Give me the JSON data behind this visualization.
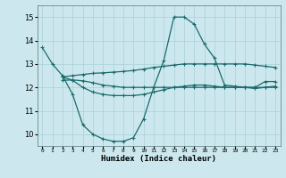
{
  "xlabel": "Humidex (Indice chaleur)",
  "ylabel": "",
  "bg_color": "#cce8ee",
  "grid_color": "#aacfd8",
  "line_color": "#1a6b6b",
  "xlim": [
    -0.5,
    23.5
  ],
  "ylim": [
    9.5,
    15.5
  ],
  "xticks": [
    0,
    1,
    2,
    3,
    4,
    5,
    6,
    7,
    8,
    9,
    10,
    11,
    12,
    13,
    14,
    15,
    16,
    17,
    18,
    19,
    20,
    21,
    22,
    23
  ],
  "yticks": [
    10,
    11,
    12,
    13,
    14,
    15
  ],
  "lines": [
    {
      "x": [
        0,
        1,
        2,
        3,
        4,
        5,
        6,
        7,
        8,
        9,
        10,
        11,
        12,
        13,
        14,
        15,
        16,
        17,
        18,
        19,
        20,
        21,
        22,
        23
      ],
      "y": [
        13.7,
        13.0,
        12.5,
        11.7,
        10.4,
        10.0,
        9.8,
        9.7,
        9.7,
        9.85,
        10.65,
        12.0,
        13.15,
        15.0,
        15.0,
        14.7,
        13.85,
        13.25,
        12.1,
        12.05,
        12.0,
        12.0,
        12.25,
        12.25
      ]
    },
    {
      "x": [
        2,
        3,
        4,
        5,
        6,
        7,
        8,
        9,
        10,
        11,
        12,
        13,
        14,
        15,
        16,
        17,
        18,
        19,
        20,
        21,
        22,
        23
      ],
      "y": [
        12.45,
        12.5,
        12.55,
        12.6,
        12.62,
        12.65,
        12.68,
        12.72,
        12.78,
        12.85,
        12.9,
        12.95,
        13.0,
        13.0,
        13.0,
        13.0,
        13.0,
        13.0,
        13.0,
        12.95,
        12.9,
        12.85
      ]
    },
    {
      "x": [
        2,
        3,
        4,
        5,
        6,
        7,
        8,
        9,
        10,
        11,
        12,
        13,
        14,
        15,
        16,
        17,
        18,
        19,
        20,
        21,
        22,
        23
      ],
      "y": [
        12.3,
        12.32,
        12.28,
        12.2,
        12.1,
        12.05,
        12.0,
        12.0,
        12.0,
        12.0,
        12.0,
        12.0,
        12.0,
        12.0,
        12.0,
        12.0,
        12.0,
        12.0,
        12.0,
        12.0,
        12.0,
        12.0
      ]
    },
    {
      "x": [
        2,
        3,
        4,
        5,
        6,
        7,
        8,
        9,
        10,
        11,
        12,
        13,
        14,
        15,
        16,
        17,
        18,
        19,
        20,
        21,
        22,
        23
      ],
      "y": [
        12.45,
        12.3,
        12.0,
        11.8,
        11.7,
        11.65,
        11.65,
        11.65,
        11.7,
        11.8,
        11.9,
        12.0,
        12.05,
        12.1,
        12.1,
        12.05,
        12.0,
        12.0,
        12.0,
        11.95,
        12.0,
        12.05
      ]
    }
  ],
  "marker": "+",
  "markersize": 3.5,
  "linewidth": 0.9
}
